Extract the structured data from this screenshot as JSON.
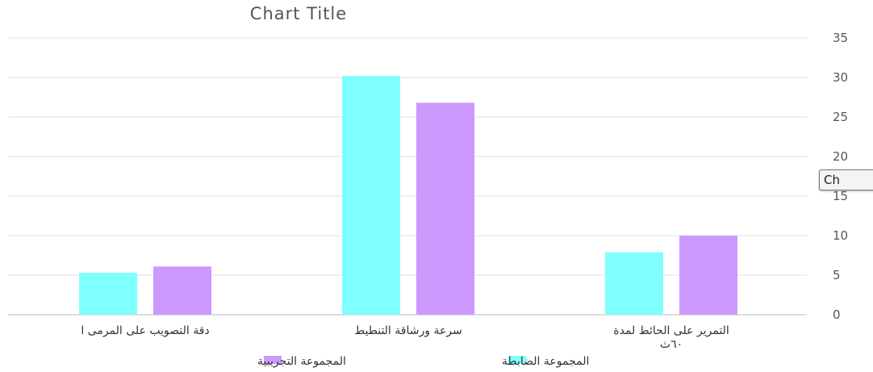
{
  "chart_data": {
    "type": "bar",
    "title": "Chart Title",
    "categories": [
      "دقة التصويب على المرمى ا",
      "سرعة ورشاقة التنطيط",
      "التمرير على الحائط لمدة ٦٠ث"
    ],
    "category_lines": [
      [
        "دقة التصويب على المرمى ا"
      ],
      [
        "سرعة ورشاقة التنطيط"
      ],
      [
        "التمرير على الحائط لمدة",
        "٦٠ث"
      ]
    ],
    "series": [
      {
        "name": "المجموعة الضابطة",
        "values": [
          5.3,
          30.2,
          7.9
        ],
        "color": "#80ffff"
      },
      {
        "name": "المجموعة التجريبية",
        "values": [
          6.1,
          26.8,
          10.0
        ],
        "color": "#cc99ff"
      }
    ],
    "ylim": [
      0,
      35
    ],
    "yticks": [
      "0",
      "5",
      "10",
      "15",
      "20",
      "25",
      "30",
      "35"
    ],
    "y_axis_side": "right",
    "grid": true,
    "legend_position": "bottom",
    "tooltip_text": "Ch"
  }
}
